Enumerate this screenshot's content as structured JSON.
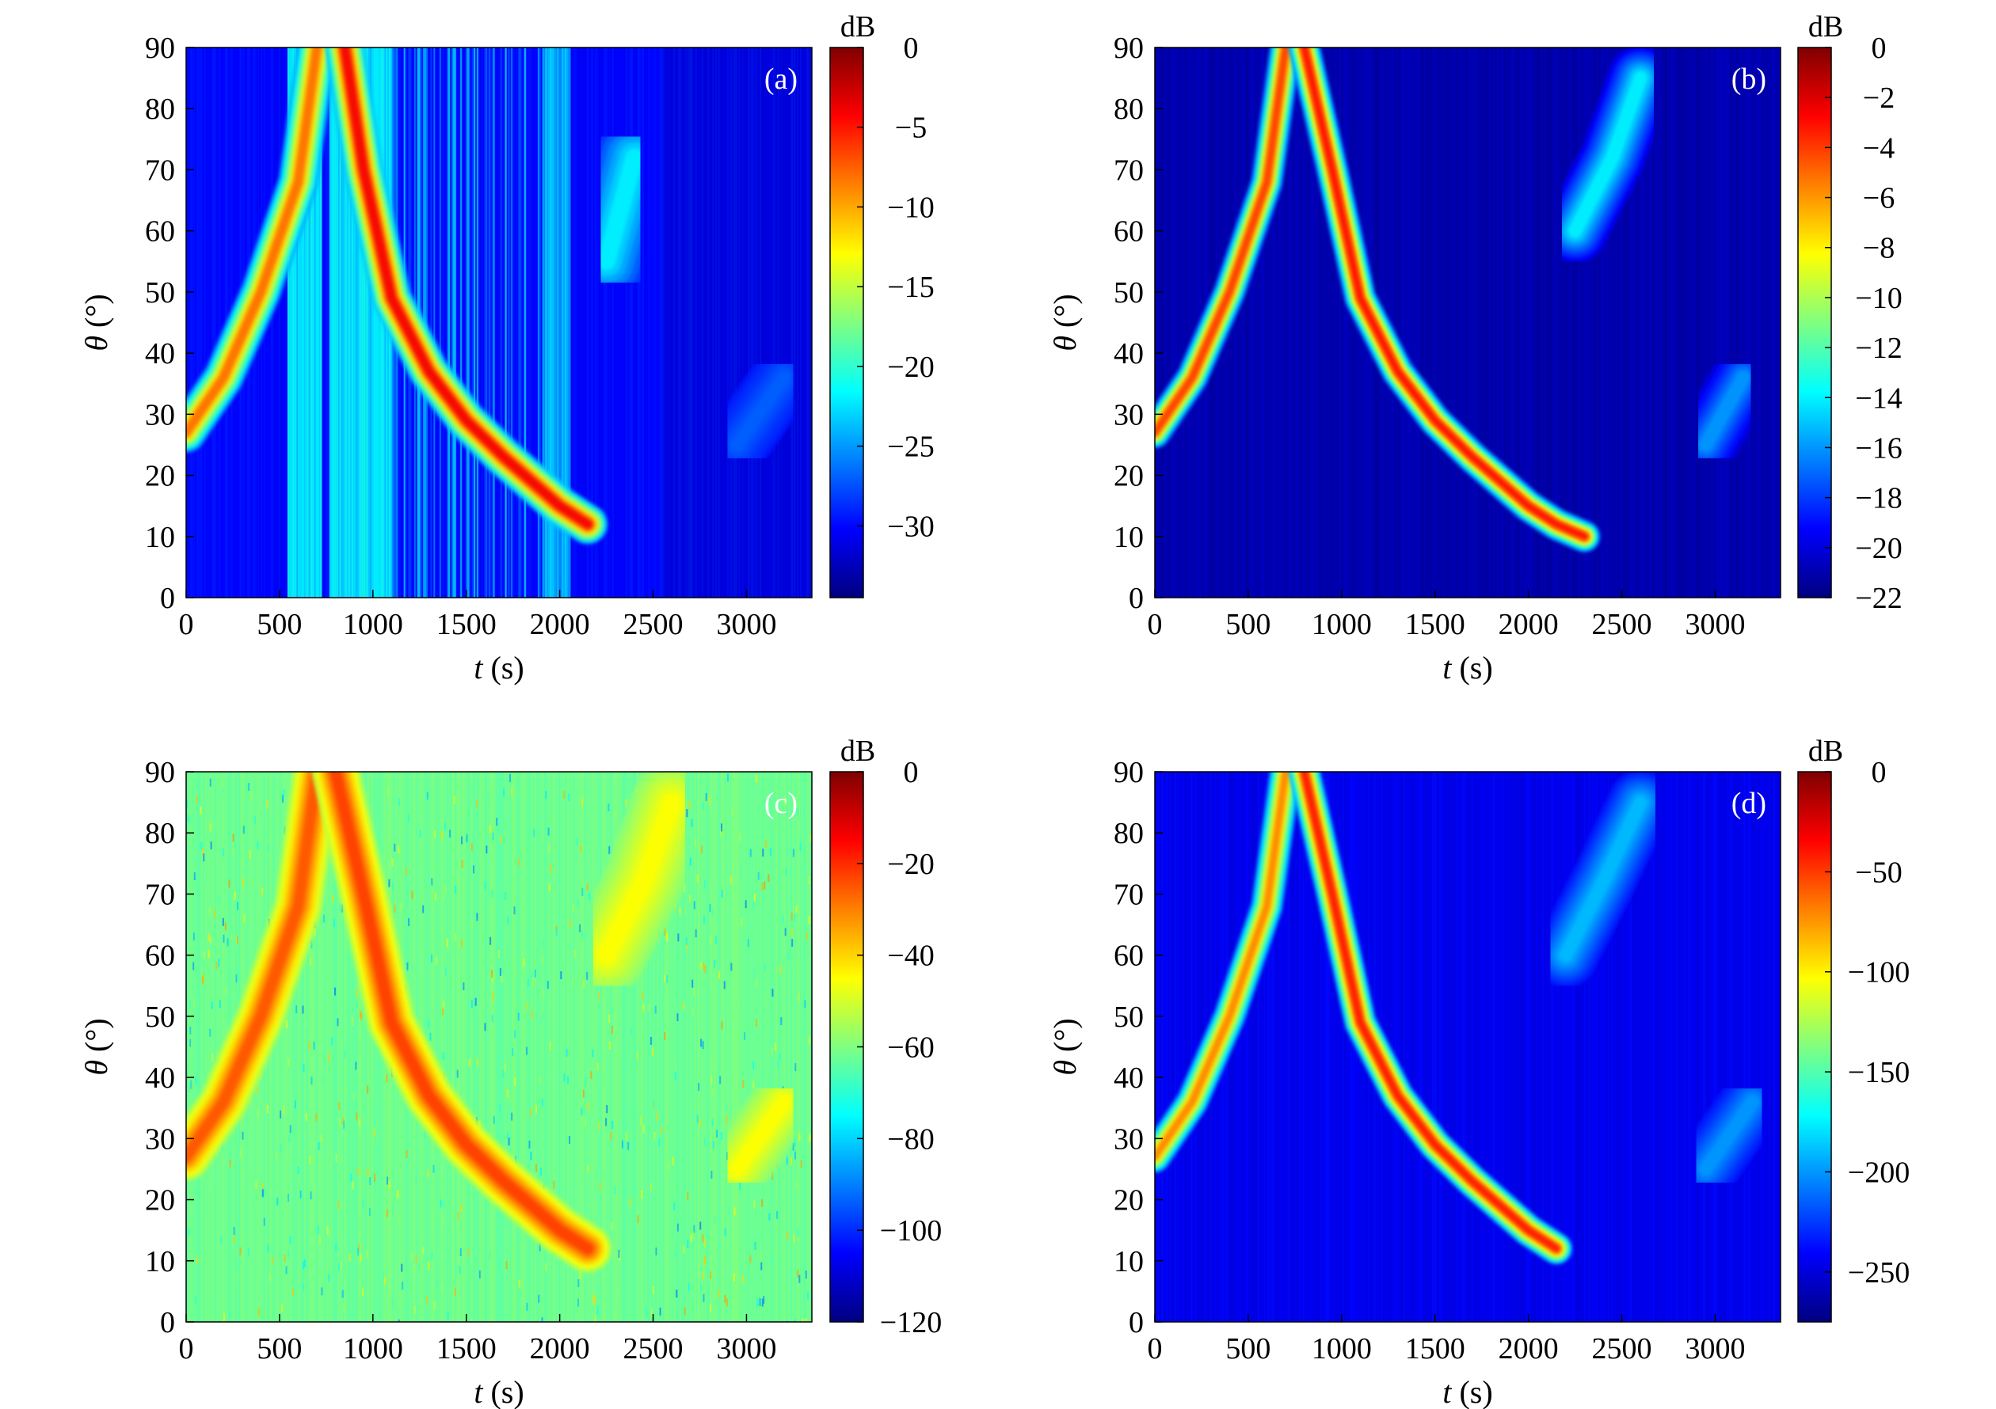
{
  "chart_data": [
    {
      "type": "heatmap",
      "panel_label": "(a)",
      "xlabel_var": "t",
      "xlabel_unit": "(s)",
      "ylabel_var": "θ",
      "ylabel_unit": "(°)",
      "xlim": [
        0,
        3350
      ],
      "ylim": [
        0,
        90
      ],
      "xticks": [
        0,
        500,
        1000,
        1500,
        2000,
        2500,
        3000
      ],
      "yticks": [
        0,
        10,
        20,
        30,
        40,
        50,
        60,
        70,
        80,
        90
      ],
      "colorbar": {
        "unit": "dB",
        "range": [
          -34.5,
          0
        ],
        "ticks": [
          0,
          -5,
          -10,
          -15,
          -20,
          -25,
          -30
        ],
        "tick_labels": [
          "0",
          "−5",
          "−10",
          "−15",
          "−20",
          "−25",
          "−30"
        ]
      },
      "background_db": -30,
      "tracks": [
        {
          "t": [
            0,
            200,
            400,
            600,
            700
          ],
          "theta": [
            27,
            36,
            50,
            68,
            90
          ],
          "peak_db": -8,
          "width_deg": 2.5
        },
        {
          "t": [
            850,
            950,
            1100,
            1300,
            1500,
            1700,
            1850,
            2000,
            2150
          ],
          "theta": [
            90,
            70,
            49,
            37,
            29,
            23,
            19,
            15,
            12
          ],
          "peak_db": -4,
          "width_deg": 2.5
        },
        {
          "t": [
            2250,
            2400
          ],
          "theta": [
            55,
            72
          ],
          "peak_db": -22,
          "width_deg": 5
        },
        {
          "t": [
            2950,
            3200
          ],
          "theta": [
            25,
            36
          ],
          "peak_db": -27,
          "width_deg": 4
        }
      ],
      "vertical_stripes": [
        {
          "t": [
            540,
            720
          ],
          "db": -22
        },
        {
          "t": [
            760,
            1100
          ],
          "db": -22
        },
        {
          "t": [
            1100,
            1900
          ],
          "db": -26,
          "stripy": true
        },
        {
          "t": [
            1900,
            2050
          ],
          "db": -24
        }
      ],
      "dark_band": {
        "t": [
          2550,
          3350
        ],
        "db": -33
      }
    },
    {
      "type": "heatmap",
      "panel_label": "(b)",
      "xlabel_var": "t",
      "xlabel_unit": "(s)",
      "ylabel_var": "θ",
      "ylabel_unit": "(°)",
      "xlim": [
        0,
        3350
      ],
      "ylim": [
        0,
        90
      ],
      "xticks": [
        0,
        500,
        1000,
        1500,
        2000,
        2500,
        3000
      ],
      "yticks": [
        0,
        10,
        20,
        30,
        40,
        50,
        60,
        70,
        80,
        90
      ],
      "colorbar": {
        "unit": "dB",
        "range": [
          -22,
          0
        ],
        "ticks": [
          0,
          -2,
          -4,
          -6,
          -8,
          -10,
          -12,
          -14,
          -16,
          -18,
          -20,
          -22
        ],
        "tick_labels": [
          "0",
          "−2",
          "−4",
          "−6",
          "−8",
          "−10",
          "−12",
          "−14",
          "−16",
          "−18",
          "−20",
          "−22"
        ]
      },
      "background_db": -21,
      "tracks": [
        {
          "t": [
            0,
            200,
            400,
            600,
            700
          ],
          "theta": [
            27,
            36,
            50,
            68,
            90
          ],
          "peak_db": -4,
          "width_deg": 2
        },
        {
          "t": [
            800,
            950,
            1100,
            1300,
            1500,
            1700,
            1850,
            2000,
            2150,
            2300
          ],
          "theta": [
            90,
            70,
            49,
            37,
            29,
            23,
            19,
            15,
            12,
            10
          ],
          "peak_db": -3,
          "width_deg": 2
        },
        {
          "t": [
            2250,
            2450,
            2600
          ],
          "theta": [
            60,
            72,
            85
          ],
          "peak_db": -14,
          "width_deg": 4
        },
        {
          "t": [
            2950,
            3150
          ],
          "theta": [
            25,
            36
          ],
          "peak_db": -16,
          "width_deg": 4
        }
      ],
      "vertical_stripes": [],
      "dark_band": null
    },
    {
      "type": "heatmap",
      "panel_label": "(c)",
      "xlabel_var": "t",
      "xlabel_unit": "(s)",
      "ylabel_var": "θ",
      "ylabel_unit": "(°)",
      "xlim": [
        0,
        3350
      ],
      "ylim": [
        0,
        90
      ],
      "xticks": [
        0,
        500,
        1000,
        1500,
        2000,
        2500,
        3000
      ],
      "yticks": [
        0,
        10,
        20,
        30,
        40,
        50,
        60,
        70,
        80,
        90
      ],
      "colorbar": {
        "unit": "dB",
        "range": [
          -120,
          0
        ],
        "ticks": [
          0,
          -20,
          -40,
          -60,
          -80,
          -100,
          -120
        ],
        "tick_labels": [
          "0",
          "−20",
          "−40",
          "−60",
          "−80",
          "−100",
          "−120"
        ]
      },
      "background_db": -62,
      "tracks": [
        {
          "t": [
            0,
            200,
            400,
            600,
            700
          ],
          "theta": [
            27,
            36,
            50,
            68,
            90
          ],
          "peak_db": -25,
          "width_deg": 3
        },
        {
          "t": [
            800,
            950,
            1100,
            1300,
            1500,
            1700,
            1850,
            2000,
            2150
          ],
          "theta": [
            90,
            70,
            49,
            37,
            29,
            23,
            19,
            15,
            12
          ],
          "peak_db": -22,
          "width_deg": 3
        },
        {
          "t": [
            2250,
            2450,
            2600
          ],
          "theta": [
            60,
            72,
            85
          ],
          "peak_db": -45,
          "width_deg": 5
        },
        {
          "t": [
            2950,
            3200
          ],
          "theta": [
            25,
            36
          ],
          "peak_db": -45,
          "width_deg": 4
        }
      ],
      "vertical_stripes": [],
      "dark_band": null
    },
    {
      "type": "heatmap",
      "panel_label": "(d)",
      "xlabel_var": "t",
      "xlabel_unit": "(s)",
      "ylabel_var": "θ",
      "ylabel_unit": "(°)",
      "xlim": [
        0,
        3350
      ],
      "ylim": [
        0,
        90
      ],
      "xticks": [
        0,
        500,
        1000,
        1500,
        2000,
        2500,
        3000
      ],
      "yticks": [
        0,
        10,
        20,
        30,
        40,
        50,
        60,
        70,
        80,
        90
      ],
      "colorbar": {
        "unit": "dB",
        "range": [
          -275,
          0
        ],
        "ticks": [
          0,
          -50,
          -100,
          -150,
          -200,
          -250
        ],
        "tick_labels": [
          "0",
          "−50",
          "−100",
          "−150",
          "−200",
          "−250"
        ]
      },
      "background_db": -245,
      "tracks": [
        {
          "t": [
            0,
            200,
            400,
            600,
            700
          ],
          "theta": [
            27,
            36,
            50,
            68,
            90
          ],
          "peak_db": -70,
          "width_deg": 2
        },
        {
          "t": [
            800,
            950,
            1100,
            1300,
            1500,
            1700,
            1850,
            2000,
            2150
          ],
          "theta": [
            90,
            70,
            49,
            37,
            29,
            23,
            19,
            15,
            12
          ],
          "peak_db": -40,
          "width_deg": 2
        },
        {
          "t": [
            2200,
            2400,
            2600
          ],
          "theta": [
            60,
            72,
            85
          ],
          "peak_db": -190,
          "width_deg": 4
        },
        {
          "t": [
            2950,
            3200
          ],
          "theta": [
            25,
            36
          ],
          "peak_db": -200,
          "width_deg": 4
        }
      ],
      "vertical_stripes": [],
      "dark_band": null
    }
  ]
}
